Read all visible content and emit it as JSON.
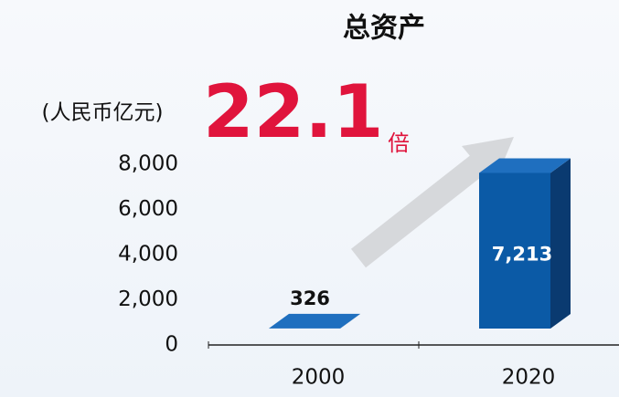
{
  "chart_data": {
    "type": "bar3d",
    "title": "总资产",
    "y_label": "(人民币亿元)",
    "annotation": {
      "value": "22.1",
      "unit": "倍"
    },
    "categories": [
      "2000",
      "2020"
    ],
    "values": [
      326,
      7213
    ],
    "value_labels": [
      "326",
      "7,213"
    ],
    "color": "#0b5aa6",
    "ylim": [
      0,
      8000
    ],
    "yticks": [
      0,
      {
        "value": 2000,
        "label": "2,000"
      },
      {
        "value": 4000,
        "label": "4,000"
      },
      {
        "value": 6000,
        "label": "6,000"
      },
      {
        "value": 8000,
        "label": "8,000"
      }
    ],
    "grid": false
  }
}
